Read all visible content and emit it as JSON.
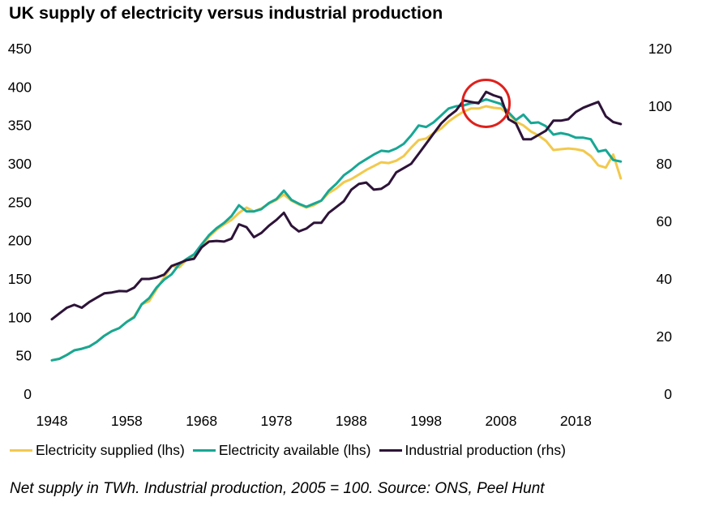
{
  "title": "UK supply of electricity versus industrial production",
  "footnote": "Net supply in TWh. Industrial production, 2005 = 100. Source: ONS, Peel Hunt",
  "colors": {
    "electricity_supplied": "#f2c94c",
    "electricity_available": "#17a795",
    "industrial_production": "#2d1338",
    "highlight_circle": "#e0201b"
  },
  "chart_data": {
    "type": "line",
    "title": "UK supply of electricity versus industrial production",
    "x_ticks": [
      "1948",
      "1958",
      "1968",
      "1978",
      "1988",
      "1998",
      "2008",
      "2018"
    ],
    "y_left_ticks": [
      "0",
      "50",
      "100",
      "150",
      "200",
      "250",
      "300",
      "350",
      "400",
      "450"
    ],
    "y_right_ticks": [
      "0",
      "20",
      "40",
      "60",
      "80",
      "100",
      "120"
    ],
    "xlim": [
      1948,
      2025
    ],
    "ylim_left": [
      0,
      450
    ],
    "ylim_right": [
      0,
      120
    ],
    "grid": false,
    "legend_position": "bottom",
    "annotation": {
      "type": "circle",
      "x": 2006,
      "y_right": 101,
      "label": ""
    },
    "series": [
      {
        "name": "Electricity supplied (lhs)",
        "axis": "left",
        "x": [
          1948,
          1949,
          1950,
          1951,
          1952,
          1953,
          1954,
          1955,
          1956,
          1957,
          1958,
          1959,
          1960,
          1961,
          1962,
          1963,
          1964,
          1965,
          1966,
          1967,
          1968,
          1969,
          1970,
          1971,
          1972,
          1973,
          1974,
          1975,
          1976,
          1977,
          1978,
          1979,
          1980,
          1981,
          1982,
          1983,
          1984,
          1985,
          1986,
          1987,
          1988,
          1989,
          1990,
          1991,
          1992,
          1993,
          1994,
          1995,
          1996,
          1997,
          1998,
          1999,
          2000,
          2001,
          2002,
          2003,
          2004,
          2005,
          2006,
          2007,
          2008,
          2009,
          2010,
          2011,
          2012,
          2013,
          2014,
          2015,
          2016,
          2017,
          2018,
          2019,
          2020,
          2021,
          2022,
          2023,
          2024
        ],
        "y": [
          44,
          46,
          51,
          57,
          59,
          62,
          68,
          76,
          82,
          86,
          94,
          101,
          117,
          121,
          137,
          152,
          167,
          165,
          175,
          180,
          191,
          205,
          214,
          221,
          227,
          236,
          243,
          238,
          242,
          248,
          253,
          260,
          252,
          247,
          243,
          246,
          252,
          262,
          268,
          276,
          280,
          286,
          292,
          297,
          302,
          301,
          304,
          310,
          321,
          331,
          333,
          340,
          346,
          355,
          362,
          368,
          372,
          372,
          375,
          373,
          372,
          365,
          355,
          350,
          342,
          337,
          330,
          318,
          319,
          320,
          319,
          317,
          310,
          298,
          295,
          312,
          281
        ]
      },
      {
        "name": "Electricity available (lhs)",
        "axis": "left",
        "x": [
          1948,
          1949,
          1950,
          1951,
          1952,
          1953,
          1954,
          1955,
          1956,
          1957,
          1958,
          1959,
          1960,
          1961,
          1962,
          1963,
          1964,
          1965,
          1966,
          1967,
          1968,
          1969,
          1970,
          1971,
          1972,
          1973,
          1974,
          1975,
          1976,
          1977,
          1978,
          1979,
          1980,
          1981,
          1982,
          1983,
          1984,
          1985,
          1986,
          1987,
          1988,
          1989,
          1990,
          1991,
          1992,
          1993,
          1994,
          1995,
          1996,
          1997,
          1998,
          1999,
          2000,
          2001,
          2002,
          2003,
          2004,
          2005,
          2006,
          2007,
          2008,
          2009,
          2010,
          2011,
          2012,
          2013,
          2014,
          2015,
          2016,
          2017,
          2018,
          2019,
          2020,
          2021,
          2022,
          2023,
          2024
        ],
        "y": [
          44,
          46,
          51,
          57,
          59,
          62,
          68,
          76,
          82,
          86,
          94,
          100,
          117,
          125,
          139,
          149,
          156,
          169,
          176,
          182,
          195,
          207,
          216,
          223,
          232,
          246,
          238,
          238,
          241,
          249,
          254,
          265,
          253,
          248,
          244,
          248,
          252,
          265,
          274,
          285,
          292,
          300,
          306,
          312,
          317,
          316,
          320,
          326,
          337,
          350,
          348,
          354,
          363,
          372,
          375,
          376,
          379,
          380,
          384,
          381,
          378,
          367,
          357,
          364,
          353,
          354,
          349,
          338,
          340,
          338,
          334,
          334,
          332,
          316,
          318,
          305,
          303
        ]
      },
      {
        "name": "Industrial production (rhs)",
        "axis": "right",
        "x": [
          1948,
          1949,
          1950,
          1951,
          1952,
          1953,
          1954,
          1955,
          1956,
          1957,
          1958,
          1959,
          1960,
          1961,
          1962,
          1963,
          1964,
          1965,
          1966,
          1967,
          1968,
          1969,
          1970,
          1971,
          1972,
          1973,
          1974,
          1975,
          1976,
          1977,
          1978,
          1979,
          1980,
          1981,
          1982,
          1983,
          1984,
          1985,
          1986,
          1987,
          1988,
          1989,
          1990,
          1991,
          1992,
          1993,
          1994,
          1995,
          1996,
          1997,
          1998,
          1999,
          2000,
          2001,
          2002,
          2003,
          2004,
          2005,
          2006,
          2007,
          2008,
          2009,
          2010,
          2011,
          2012,
          2013,
          2014,
          2015,
          2016,
          2017,
          2018,
          2019,
          2020,
          2021,
          2022,
          2023,
          2024
        ],
        "y": [
          26,
          28,
          30,
          31,
          30,
          32,
          33.5,
          35,
          35.3,
          35.8,
          35.7,
          37,
          40,
          40,
          40.5,
          41.5,
          44.5,
          45.5,
          46.5,
          47,
          51,
          53,
          53.2,
          53,
          54,
          59,
          58,
          54.5,
          56,
          58.5,
          60.5,
          63,
          58.5,
          56.5,
          57.5,
          59.5,
          59.5,
          63,
          65,
          67,
          71,
          73,
          73.5,
          71,
          71.3,
          73,
          77,
          78.5,
          80,
          83.5,
          87,
          90.5,
          94,
          96.5,
          98.5,
          102,
          101.5,
          101,
          105,
          103.8,
          103,
          95.5,
          94,
          88.5,
          88.5,
          90,
          91.5,
          95,
          95,
          95.5,
          98,
          99.5,
          100.5,
          101.5,
          96.5,
          94.5,
          93.8
        ]
      }
    ]
  }
}
